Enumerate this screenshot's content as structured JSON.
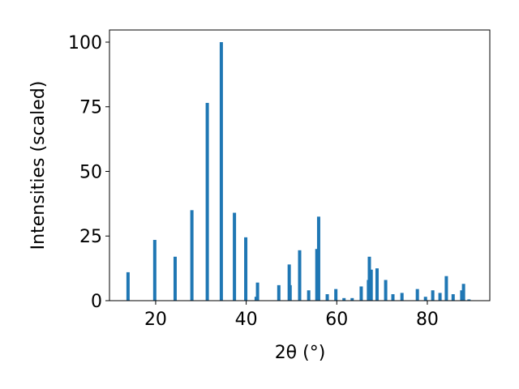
{
  "chart_data": {
    "type": "bar",
    "x_label": "2θ (°)",
    "y_label": "Intensities (scaled)",
    "x": [
      13.9,
      19.8,
      24.3,
      28.0,
      31.4,
      34.5,
      37.4,
      39.9,
      42.2,
      42.5,
      47.2,
      49.5,
      49.7,
      51.8,
      53.8,
      55.6,
      56.0,
      57.9,
      59.8,
      61.6,
      63.4,
      65.4,
      67.0,
      67.2,
      67.6,
      68.9,
      70.8,
      72.4,
      74.4,
      77.8,
      79.6,
      81.2,
      82.8,
      84.2,
      85.7,
      87.6,
      88.0,
      89.2
    ],
    "values": [
      11,
      23.5,
      17,
      35,
      76.5,
      100,
      34,
      24.5,
      1.5,
      7,
      6,
      14,
      6,
      19.5,
      4,
      20,
      32.5,
      2.5,
      4.5,
      1,
      1,
      5.5,
      8,
      17,
      12,
      12.5,
      8,
      2.5,
      3,
      4.5,
      1.5,
      4,
      3,
      9.5,
      2.5,
      4,
      6.5,
      0.5
    ],
    "color": "#1f77b4",
    "xlim": [
      9.8,
      93.8
    ],
    "ylim": [
      0,
      104.7
    ],
    "xticks": [
      20,
      40,
      60,
      80
    ],
    "yticks": [
      0,
      25,
      50,
      75,
      100
    ],
    "grid": false
  }
}
